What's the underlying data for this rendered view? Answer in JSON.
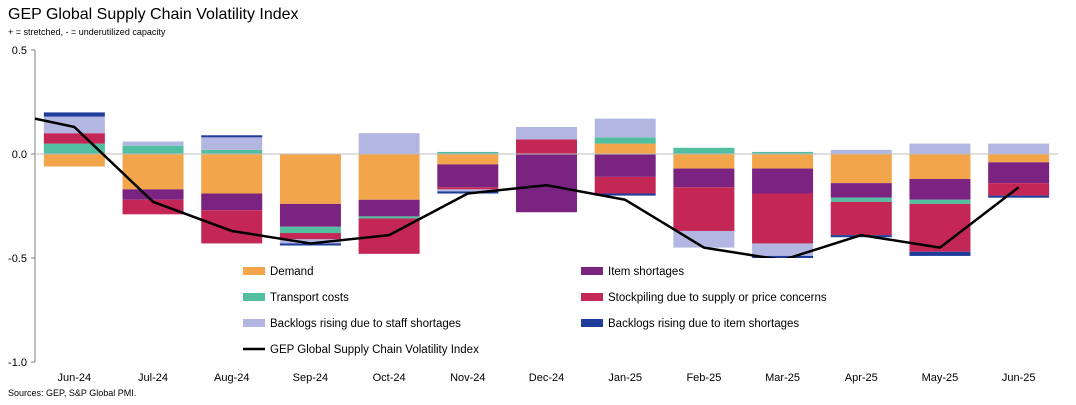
{
  "title": "GEP Global Supply Chain Volatility Index",
  "subtitle": "+ = stretched, - = underutilized capacity",
  "source": "Sources: GEP, S&P Global PMI.",
  "chart_data": {
    "type": "bar",
    "stacked": true,
    "categories": [
      "Jun-24",
      "Jul-24",
      "Aug-24",
      "Sep-24",
      "Oct-24",
      "Nov-24",
      "Dec-24",
      "Jan-25",
      "Feb-25",
      "Mar-25",
      "Apr-25",
      "May-25",
      "Jun-25"
    ],
    "ylim": [
      -1.0,
      0.5
    ],
    "yticks": [
      0.5,
      0.0,
      -0.5,
      -1.0
    ],
    "ytick_labels": [
      "0.5",
      "0.0",
      "-0.5",
      "-1.0"
    ],
    "legend_position": "bottom-center",
    "series": [
      {
        "name": "Demand",
        "color": "#F2A54A",
        "values": [
          -0.06,
          -0.17,
          -0.19,
          -0.24,
          -0.22,
          -0.05,
          0.0,
          0.05,
          -0.07,
          -0.07,
          -0.14,
          -0.12,
          -0.04
        ]
      },
      {
        "name": "Item shortages",
        "color": "#7B2381",
        "values": [
          0.0,
          -0.05,
          -0.08,
          -0.11,
          -0.08,
          -0.11,
          -0.28,
          -0.11,
          -0.09,
          -0.12,
          -0.07,
          -0.1,
          -0.1
        ]
      },
      {
        "name": "Transport costs",
        "color": "#52BFA0",
        "values": [
          0.05,
          0.04,
          0.02,
          -0.03,
          -0.01,
          0.01,
          0.0,
          0.03,
          0.03,
          0.01,
          -0.02,
          -0.02,
          0.0
        ]
      },
      {
        "name": "Stockpiling due to supply or price concerns",
        "color": "#C42656",
        "values": [
          0.05,
          -0.07,
          -0.16,
          -0.03,
          -0.17,
          -0.01,
          0.07,
          -0.08,
          -0.21,
          -0.24,
          -0.16,
          -0.23,
          -0.06
        ]
      },
      {
        "name": "Backlogs rising due to staff shortages",
        "color": "#B3B6E0",
        "values": [
          0.08,
          0.02,
          0.06,
          -0.02,
          0.1,
          -0.01,
          0.06,
          0.09,
          -0.08,
          -0.06,
          0.02,
          0.05,
          0.05
        ]
      },
      {
        "name": "Backlogs rising due to item shortages",
        "color": "#1F3C9A",
        "values": [
          0.02,
          0.0,
          0.01,
          -0.01,
          0.0,
          -0.01,
          0.0,
          -0.01,
          0.0,
          -0.02,
          -0.01,
          -0.02,
          -0.01
        ]
      }
    ],
    "line": {
      "name": "GEP Global Supply Chain Volatility Index",
      "color": "#000000",
      "x_start_value": 0.17,
      "values": [
        0.13,
        -0.23,
        -0.37,
        -0.43,
        -0.39,
        -0.19,
        -0.15,
        -0.22,
        -0.45,
        -0.51,
        -0.39,
        -0.45,
        -0.16
      ]
    }
  }
}
